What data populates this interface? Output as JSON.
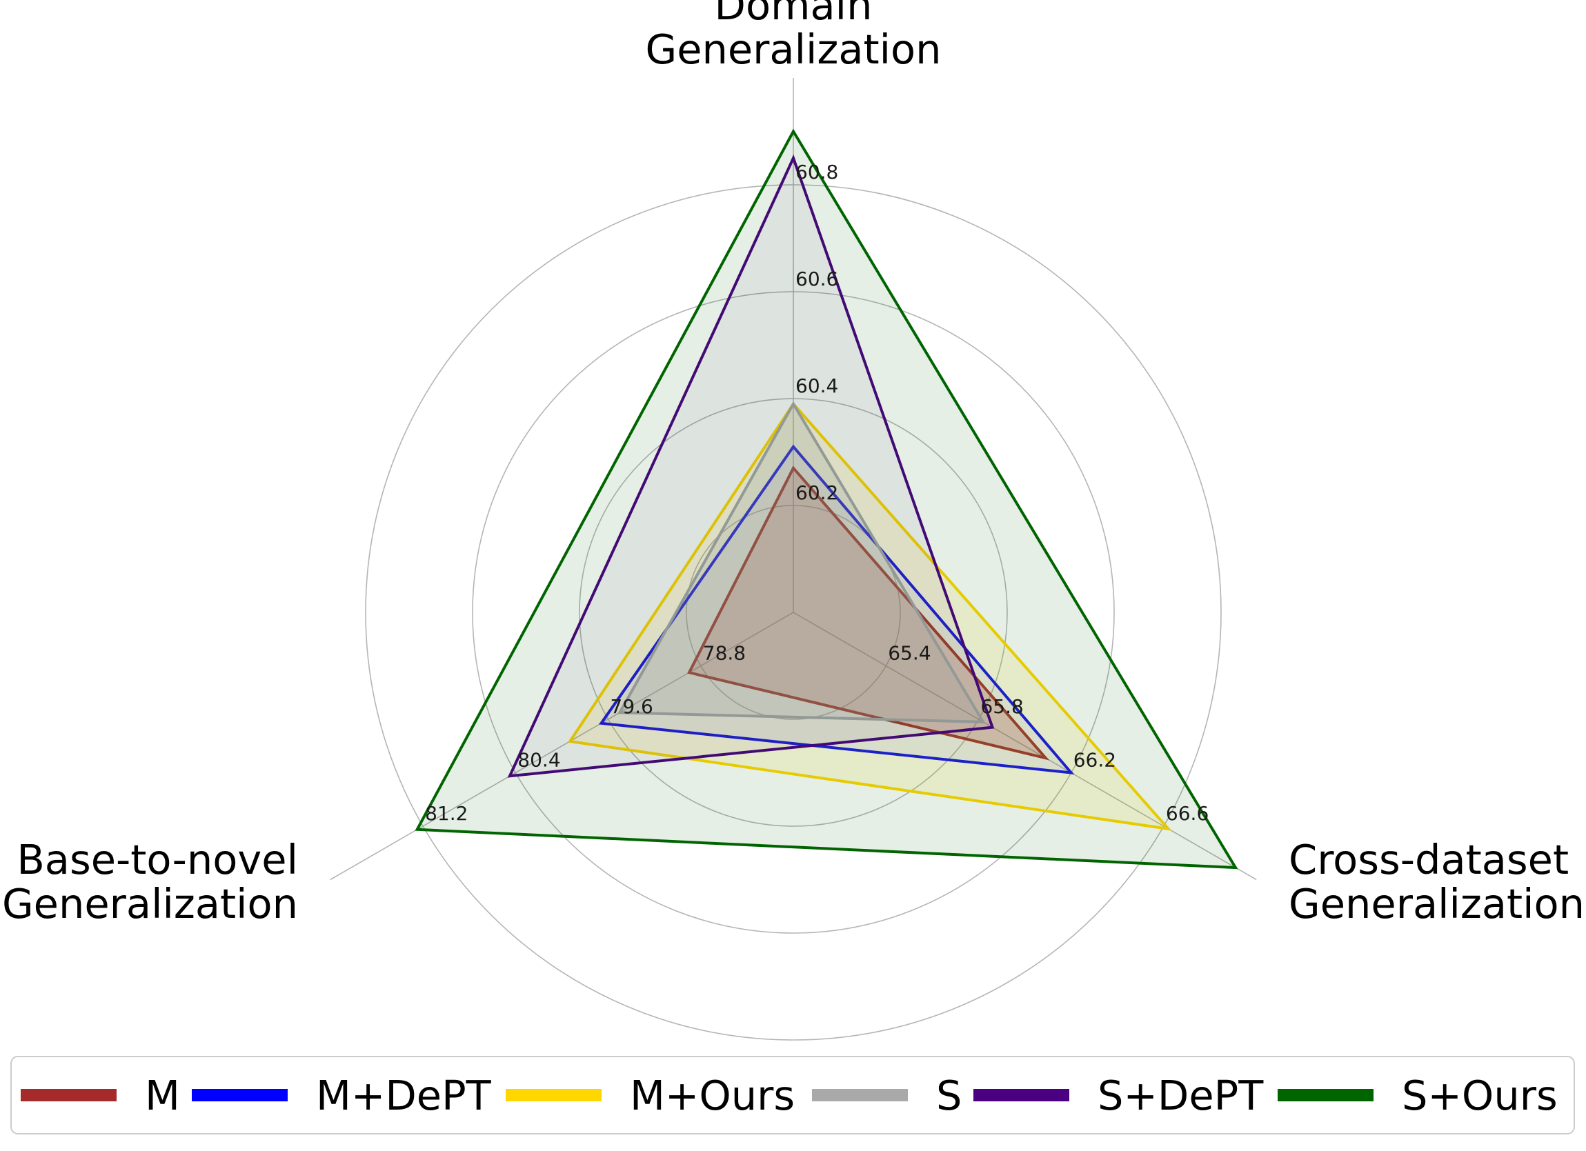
{
  "chart_data": {
    "type": "radar",
    "axes": [
      {
        "label": [
          "Domain",
          "Generalization"
        ],
        "ticks": [
          "60.2",
          "60.4",
          "60.6",
          "60.8"
        ],
        "tick_values": [
          60.2,
          60.4,
          60.6,
          60.8
        ],
        "range": [
          60.0,
          61.0
        ]
      },
      {
        "label": [
          "Cross-dataset",
          "Generalization"
        ],
        "ticks": [
          "65.4",
          "65.8",
          "66.2",
          "66.6"
        ],
        "tick_values": [
          65.4,
          65.8,
          66.2,
          66.6
        ],
        "range": [
          65.0,
          67.0
        ]
      },
      {
        "label": [
          "Base-to-novel",
          "Generalization"
        ],
        "ticks": [
          "78.8",
          "79.6",
          "80.4",
          "81.2"
        ],
        "tick_values": [
          78.8,
          79.6,
          80.4,
          81.2
        ],
        "range": [
          78.0,
          82.0
        ]
      }
    ],
    "series": [
      {
        "name": "M",
        "values": [
          60.27,
          66.09,
          78.9
        ],
        "color": "#a52a2a",
        "fill_opacity": 0.22
      },
      {
        "name": "M+DePT",
        "values": [
          60.31,
          66.2,
          79.66
        ],
        "color": "#0000ff",
        "fill_opacity": 0.06
      },
      {
        "name": "M+Ours",
        "values": [
          60.39,
          66.62,
          79.93
        ],
        "color": "#ffd700",
        "fill_opacity": 0.12
      },
      {
        "name": "S",
        "values": [
          60.39,
          65.82,
          79.5
        ],
        "color": "#a9a9a9",
        "fill_opacity": 0.22
      },
      {
        "name": "S+DePT",
        "values": [
          60.85,
          65.86,
          80.45
        ],
        "color": "#4b0082",
        "fill_opacity": 0.05
      },
      {
        "name": "S+Ours",
        "values": [
          60.9,
          66.91,
          81.25
        ],
        "color": "#006400",
        "fill_opacity": 0.1
      }
    ],
    "grid": true,
    "legend_position": "bottom"
  }
}
